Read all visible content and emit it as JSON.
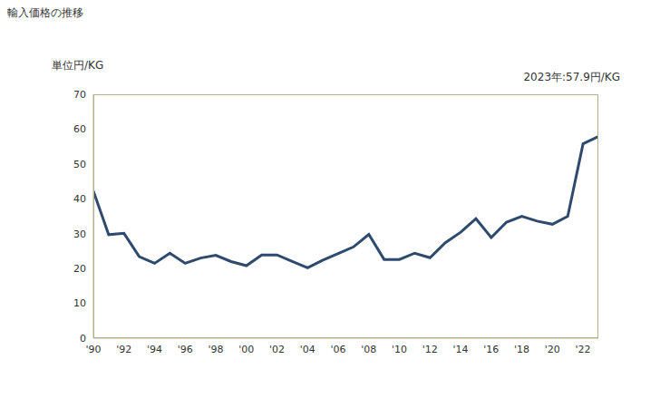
{
  "chart_data": {
    "type": "line",
    "title": "輸入価格の推移",
    "y_label": "単位円/KG",
    "annotation": "2023年:57.9円/KG",
    "x": [
      1990,
      1991,
      1992,
      1993,
      1994,
      1995,
      1996,
      1997,
      1998,
      1999,
      2000,
      2001,
      2002,
      2003,
      2004,
      2005,
      2006,
      2007,
      2008,
      2009,
      2010,
      2011,
      2012,
      2013,
      2014,
      2015,
      2016,
      2017,
      2018,
      2019,
      2020,
      2021,
      2022,
      2023
    ],
    "values": [
      42.2,
      29.7,
      30.1,
      23.4,
      21.5,
      24.4,
      21.5,
      23.0,
      23.8,
      22.0,
      20.8,
      23.9,
      23.9,
      22.0,
      20.2,
      22.4,
      24.3,
      26.2,
      29.8,
      22.6,
      22.6,
      24.4,
      23.1,
      27.4,
      30.4,
      34.3,
      28.9,
      33.3,
      35.0,
      33.6,
      32.7,
      35.0,
      55.8,
      57.9
    ],
    "color": "#2e4a6e",
    "xlim": [
      1990,
      2023
    ],
    "xticks": [
      {
        "value": 1990,
        "label": "'90"
      },
      {
        "value": 1992,
        "label": "'92"
      },
      {
        "value": 1994,
        "label": "'94"
      },
      {
        "value": 1996,
        "label": "'96"
      },
      {
        "value": 1998,
        "label": "'98"
      },
      {
        "value": 2000,
        "label": "'00"
      },
      {
        "value": 2002,
        "label": "'02"
      },
      {
        "value": 2004,
        "label": "'04"
      },
      {
        "value": 2006,
        "label": "'06"
      },
      {
        "value": 2008,
        "label": "'08"
      },
      {
        "value": 2010,
        "label": "'10"
      },
      {
        "value": 2012,
        "label": "'12"
      },
      {
        "value": 2014,
        "label": "'14"
      },
      {
        "value": 2016,
        "label": "'16"
      },
      {
        "value": 2018,
        "label": "'18"
      },
      {
        "value": 2020,
        "label": "'20"
      },
      {
        "value": 2022,
        "label": "'22"
      }
    ],
    "ylim": [
      0,
      70
    ],
    "yticks": [
      0,
      10,
      20,
      30,
      40,
      50,
      60,
      70
    ],
    "grid": false
  }
}
